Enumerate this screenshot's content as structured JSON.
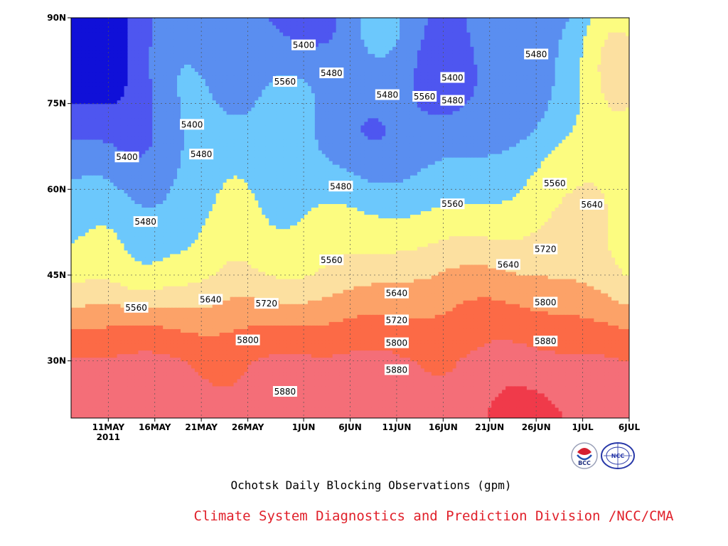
{
  "chart_data": {
    "type": "heatmap",
    "subtype": "filled-contour (Hovmoller: date vs latitude)",
    "caption": "Ochotsk Daily Blocking Observations (gpm)",
    "credit": "Climate System Diagnostics and Prediction Division /NCC/CMA",
    "x_axis": {
      "ticks": [
        "11MAY",
        "16MAY",
        "21MAY",
        "26MAY",
        "1JUN",
        "6JUN",
        "11JUN",
        "16JUN",
        "21JUN",
        "26JUN",
        "1JUL",
        "6JUL"
      ],
      "year_label": "2011",
      "range": [
        "2011-05-07",
        "2011-07-06"
      ]
    },
    "y_axis": {
      "ticks": [
        "30N",
        "45N",
        "60N",
        "75N",
        "90N"
      ],
      "tick_values": [
        30,
        45,
        60,
        75,
        90
      ],
      "range": [
        20,
        90
      ]
    },
    "grid": true,
    "contour_levels": [
      5400,
      5480,
      5560,
      5640,
      5720,
      5800,
      5880
    ],
    "color_scale": [
      {
        "below": 5320,
        "color": "#1010d8"
      },
      {
        "below": 5400,
        "color": "#4e56f0"
      },
      {
        "below": 5480,
        "color": "#5a8ef0"
      },
      {
        "below": 5560,
        "color": "#6cc8fc"
      },
      {
        "below": 5640,
        "color": "#fcfc80"
      },
      {
        "below": 5720,
        "color": "#fce0a0"
      },
      {
        "below": 5800,
        "color": "#fca268"
      },
      {
        "below": 5880,
        "color": "#fc6a46"
      },
      {
        "below": 5960,
        "color": "#f46e78"
      },
      {
        "below": 99999,
        "color": "#f03a4a"
      }
    ],
    "contour_labels": [
      {
        "text": "5400",
        "date": "2011-06-01",
        "lat": 85.2
      },
      {
        "text": "5480",
        "date": "2011-06-04",
        "lat": 80.3
      },
      {
        "text": "5560",
        "date": "2011-05-30",
        "lat": 78.8
      },
      {
        "text": "5480",
        "date": "2011-06-10",
        "lat": 76.5
      },
      {
        "text": "5560",
        "date": "2011-06-14",
        "lat": 76.2
      },
      {
        "text": "5400",
        "date": "2011-06-17",
        "lat": 79.5
      },
      {
        "text": "5480",
        "date": "2011-06-17",
        "lat": 75.5
      },
      {
        "text": "5480",
        "date": "2011-06-26",
        "lat": 83.6
      },
      {
        "text": "5400",
        "date": "2011-05-20",
        "lat": 71.3
      },
      {
        "text": "5400",
        "date": "2011-05-13",
        "lat": 65.6
      },
      {
        "text": "5480",
        "date": "2011-05-21",
        "lat": 66.1
      },
      {
        "text": "5480",
        "date": "2011-06-05",
        "lat": 60.5
      },
      {
        "text": "5560",
        "date": "2011-06-17",
        "lat": 57.4
      },
      {
        "text": "5560",
        "date": "2011-06-28",
        "lat": 61.0
      },
      {
        "text": "5640",
        "date": "2011-07-02",
        "lat": 57.3
      },
      {
        "text": "5480",
        "date": "2011-05-15",
        "lat": 54.3
      },
      {
        "text": "5560",
        "date": "2011-06-04",
        "lat": 47.6
      },
      {
        "text": "5720",
        "date": "2011-06-27",
        "lat": 49.5
      },
      {
        "text": "5640",
        "date": "2011-06-23",
        "lat": 46.8
      },
      {
        "text": "5560",
        "date": "2011-05-14",
        "lat": 39.3
      },
      {
        "text": "5640",
        "date": "2011-05-22",
        "lat": 40.7
      },
      {
        "text": "5720",
        "date": "2011-05-28",
        "lat": 40.0
      },
      {
        "text": "5640",
        "date": "2011-06-11",
        "lat": 41.8
      },
      {
        "text": "5720",
        "date": "2011-06-11",
        "lat": 37.1
      },
      {
        "text": "5800",
        "date": "2011-06-27",
        "lat": 40.2
      },
      {
        "text": "5800",
        "date": "2011-05-26",
        "lat": 33.6
      },
      {
        "text": "5800",
        "date": "2011-06-11",
        "lat": 33.1
      },
      {
        "text": "5880",
        "date": "2011-06-27",
        "lat": 33.4
      },
      {
        "text": "5880",
        "date": "2011-06-11",
        "lat": 28.4
      },
      {
        "text": "5880",
        "date": "2011-05-30",
        "lat": 24.6
      }
    ]
  },
  "logos": {
    "left_text": "BCC",
    "right_text": "NCC"
  }
}
